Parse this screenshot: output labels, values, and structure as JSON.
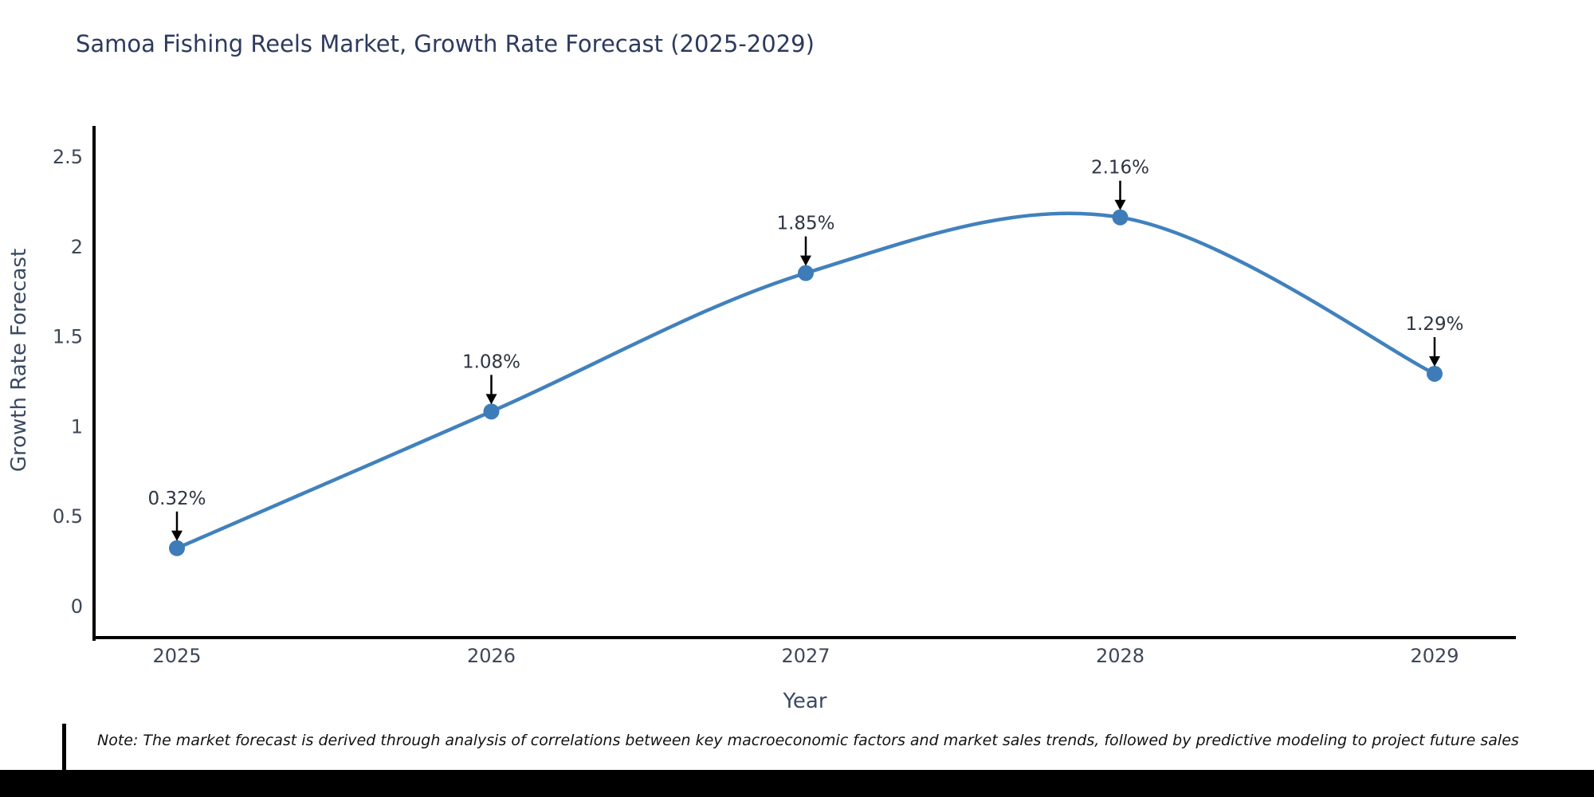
{
  "title": "Samoa Fishing Reels Market, Growth Rate Forecast (2025-2029)",
  "note": "Note: The market forecast is derived through analysis of correlations between key macroeconomic factors and market sales trends, followed by predictive modeling to project future sales",
  "chart_data": {
    "type": "line",
    "title": "Samoa Fishing Reels Market, Growth Rate Forecast (2025-2029)",
    "xlabel": "Year",
    "ylabel": "Growth Rate Forecast",
    "categories": [
      "2025",
      "2026",
      "2027",
      "2028",
      "2029"
    ],
    "values": [
      0.32,
      1.08,
      1.85,
      2.16,
      1.29
    ],
    "point_labels": [
      "0.32%",
      "1.08%",
      "1.85%",
      "2.16%",
      "1.29%"
    ],
    "y_ticks": [
      "0",
      "0.5",
      "1",
      "1.5",
      "2",
      "2.5"
    ],
    "y_tick_values": [
      0,
      0.5,
      1,
      1.5,
      2,
      2.5
    ],
    "ylim": [
      -0.18,
      2.7
    ],
    "grid": false,
    "legend_position": "none",
    "line_shape": "spline",
    "annotation_style": "value label with black arrow pointing down to each marker",
    "colors": {
      "line": "#4181bd",
      "marker": "#3e7cb8",
      "axis_spine": "#000000",
      "title_text": "#2d3a5e",
      "axis_title_text": "#3b4a63",
      "tick_text": "#3d4757",
      "annotation_text": "#2d3542",
      "annotation_arrow": "#000000",
      "note_text": "#111111",
      "background": "#ffffff"
    }
  }
}
